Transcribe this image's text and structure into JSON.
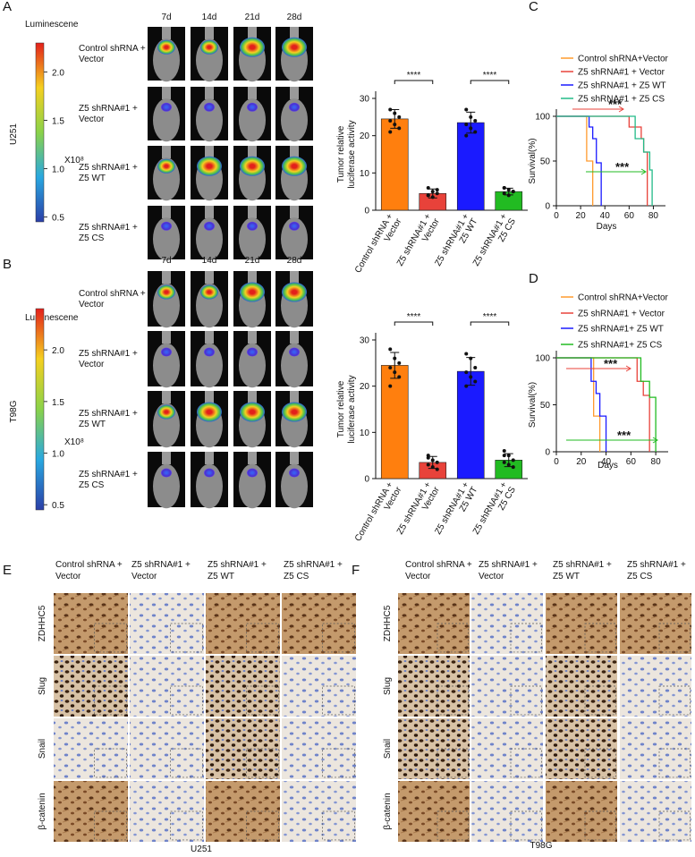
{
  "panel_labels": [
    "A",
    "B",
    "C",
    "D",
    "E",
    "F"
  ],
  "imaging": [
    {
      "cell_line": "U251",
      "colorbar_title": "Luminescene",
      "scale_label": "X10⁸",
      "colorbar_lim": [
        0.45,
        2.3
      ],
      "colorbar_ticks": [
        {
          "value": 2,
          "label": "2.0"
        },
        {
          "value": 1.5,
          "label": "1.5"
        },
        {
          "value": 1,
          "label": "1.0"
        },
        0.5
      ],
      "timepoints": [
        "7d",
        "14d",
        "21d",
        "28d"
      ],
      "groups": [
        [
          "Control shRNA +",
          "Vector"
        ],
        [
          "Z5 shRNA#1 +",
          "Vector"
        ],
        [
          "Z5 shRNA#1 +",
          "Z5 WT"
        ],
        [
          "Z5 shRNA#1 +",
          "Z5 CS"
        ]
      ]
    },
    {
      "cell_line": "T98G",
      "colorbar_title": "Luminescene",
      "scale_label": "X10⁸",
      "colorbar_lim": [
        0.45,
        2.4
      ],
      "colorbar_ticks": [
        {
          "value": 2,
          "label": "2.0"
        },
        {
          "value": 1.5,
          "label": "1.5"
        },
        {
          "value": 1,
          "label": "1.0"
        },
        0.5
      ],
      "timepoints": [
        "7d",
        "14d",
        "21d",
        "28d"
      ],
      "groups": [
        [
          "Control shRNA +",
          "Vector"
        ],
        [
          "Z5 shRNA#1 +",
          "Vector"
        ],
        [
          "Z5 shRNA#1 +",
          "Z5 WT"
        ],
        [
          "Z5 shRNA#1 +",
          "Z5 CS"
        ]
      ]
    }
  ],
  "chart_data": [
    {
      "type": "bar",
      "ylabel": [
        "Tumor relative",
        "luciferase activity"
      ],
      "categories": [
        [
          "Control shRNA +",
          "Vector"
        ],
        [
          "Z5 shRNA#1 +",
          "Vector"
        ],
        [
          "Z5 shRNA#1 +",
          "Z5 WT"
        ],
        [
          "Z5 shRNA#1 +",
          "Z5 CS"
        ]
      ],
      "values": [
        24.5,
        4.5,
        23.5,
        5
      ],
      "errors": [
        2.5,
        1.2,
        2.8,
        0.9
      ],
      "points": [
        [
          27,
          26,
          25,
          24,
          23,
          22,
          21
        ],
        [
          6,
          5,
          4.5,
          4,
          3.5,
          5.5,
          4
        ],
        [
          27,
          25,
          24,
          23,
          22,
          21,
          20
        ],
        [
          6,
          5.5,
          5,
          4.5,
          4,
          5,
          6
        ]
      ],
      "colors": [
        "#ff7f0e",
        "#e8423a",
        "#1a1aff",
        "#22bb22"
      ],
      "significance": [
        "****",
        "****"
      ],
      "ylim": [
        0,
        30
      ],
      "yticks": [
        0,
        10,
        20,
        30
      ]
    },
    {
      "type": "survival",
      "xlabel": "Days",
      "ylabel": "Survival(%)",
      "xlim": [
        0,
        90
      ],
      "xticks": [
        0,
        20,
        40,
        60,
        80
      ],
      "ylim": [
        0,
        100
      ],
      "yticks": [
        0,
        50,
        100
      ],
      "series": [
        {
          "name": "Control shRNA+Vector",
          "color": "#ff9a2e",
          "x": [
            0,
            25,
            25,
            30,
            30
          ],
          "values": [
            100,
            100,
            50,
            50,
            0
          ]
        },
        {
          "name": "Z5 shRNA#1 + Vector",
          "color": "#e8423a",
          "x": [
            0,
            60,
            60,
            70,
            70,
            72,
            72,
            75,
            75
          ],
          "values": [
            100,
            100,
            88,
            88,
            75,
            75,
            60,
            60,
            0
          ]
        },
        {
          "name": "Z5 shRNA#1 + Z5 WT",
          "color": "#1a1aff",
          "x": [
            0,
            27,
            27,
            30,
            30,
            33,
            33,
            37,
            37
          ],
          "values": [
            100,
            100,
            88,
            88,
            75,
            75,
            48,
            48,
            0
          ]
        },
        {
          "name": "Z5 shRNA#1 + Z5 CS",
          "color": "#22bb88",
          "x": [
            0,
            65,
            65,
            72,
            72,
            77,
            77,
            79,
            79
          ],
          "values": [
            100,
            100,
            75,
            75,
            60,
            60,
            40,
            40,
            0
          ]
        }
      ],
      "annotations": [
        {
          "text": "***",
          "color": "#e8423a"
        },
        {
          "text": "***",
          "color": "#22bb22"
        }
      ]
    },
    {
      "type": "bar",
      "ylabel": [
        "Tumor relative",
        "luciferase activity"
      ],
      "categories": [
        [
          "Control shRNA +",
          "Vector"
        ],
        [
          "Z5 shRNA#1 +",
          "Vector"
        ],
        [
          "Z5 shRNA#1 +",
          "Z5 WT"
        ],
        [
          "Z5 shRNA#1 +",
          "Z5 CS"
        ]
      ],
      "values": [
        24.5,
        3.5,
        23.2,
        4
      ],
      "errors": [
        2.8,
        1.3,
        3,
        1.4
      ],
      "points": [
        [
          28,
          26,
          25,
          24,
          23,
          22,
          20
        ],
        [
          5,
          4,
          3.5,
          3,
          2.5,
          2,
          4.5
        ],
        [
          27,
          26,
          24,
          23,
          22,
          21,
          20
        ],
        [
          6,
          5,
          4,
          3.5,
          3,
          2.5,
          5
        ]
      ],
      "colors": [
        "#ff7f0e",
        "#e8423a",
        "#1a1aff",
        "#22bb22"
      ],
      "significance": [
        "****",
        "****"
      ],
      "ylim": [
        0,
        30
      ],
      "yticks": [
        0,
        10,
        20,
        30
      ]
    },
    {
      "type": "survival",
      "xlabel": "Days",
      "ylabel": "Survival(%)",
      "xlim": [
        0,
        90
      ],
      "xticks": [
        0,
        20,
        40,
        60,
        80
      ],
      "ylim": [
        0,
        100
      ],
      "yticks": [
        0,
        50,
        100
      ],
      "series": [
        {
          "name": "Control shRNA+Vector",
          "color": "#ff9a2e",
          "x": [
            0,
            30,
            30,
            35,
            35
          ],
          "values": [
            100,
            100,
            38,
            38,
            0
          ]
        },
        {
          "name": "Z5 shRNA#1 + Vector",
          "color": "#e8423a",
          "x": [
            0,
            65,
            65,
            70,
            70,
            75,
            75
          ],
          "values": [
            100,
            100,
            75,
            75,
            60,
            60,
            0
          ]
        },
        {
          "name": "Z5 shRNA#1+ Z5 WT",
          "color": "#1a1aff",
          "x": [
            0,
            28,
            28,
            32,
            32,
            35,
            35,
            40,
            40
          ],
          "values": [
            100,
            100,
            75,
            75,
            62,
            62,
            38,
            38,
            0
          ]
        },
        {
          "name": "Z5 shRNA#1+ Z5 CS",
          "color": "#22bb22",
          "x": [
            0,
            68,
            68,
            75,
            75,
            80,
            80
          ],
          "values": [
            100,
            100,
            75,
            75,
            58,
            58,
            0
          ]
        }
      ],
      "annotations": [
        {
          "text": "***",
          "color": "#e8423a"
        },
        {
          "text": "***",
          "color": "#22bb22"
        }
      ]
    }
  ],
  "ihc": [
    {
      "cell_line": "U251",
      "stains": [
        "ZDHHC5",
        "Slug",
        "Snail",
        "β-catenin"
      ],
      "groups": [
        [
          "Control shRNA +",
          "Vector"
        ],
        [
          "Z5 shRNA#1 +",
          "Vector"
        ],
        [
          "Z5 shRNA#1 +",
          "Z5 WT"
        ],
        [
          "Z5 shRNA#1 +",
          "Z5 CS"
        ]
      ]
    },
    {
      "cell_line": "T98G",
      "stains": [
        "ZDHHC5",
        "Slug",
        "Snail",
        "β-catenin"
      ],
      "groups": [
        [
          "Control shRNA +",
          "Vector"
        ],
        [
          "Z5 shRNA#1 +",
          "Vector"
        ],
        [
          "Z5 shRNA#1 +",
          "Z5 WT"
        ],
        [
          "Z5 shRNA#1 +",
          "Z5 CS"
        ]
      ]
    }
  ]
}
